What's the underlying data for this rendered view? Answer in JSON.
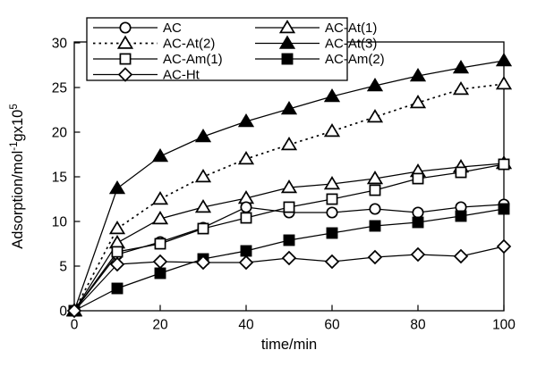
{
  "figure": {
    "background": "#ffffff",
    "ink_color": "#000000"
  },
  "chart_data": {
    "type": "line",
    "title": "",
    "xlabel": "time/min",
    "ylabel": "Adsorption/mol⁻¹gx10⁵",
    "ylabel_parts": [
      {
        "text": "Adsorption/mol"
      },
      {
        "text": "-1",
        "sup": true
      },
      {
        "text": "gx10"
      },
      {
        "text": "5",
        "sup": true
      }
    ],
    "xlim": [
      0,
      100
    ],
    "ylim": [
      0,
      30
    ],
    "xticks": [
      0,
      20,
      40,
      60,
      80,
      100
    ],
    "yticks": [
      0,
      5,
      10,
      15,
      20,
      25,
      30
    ],
    "grid": false,
    "legend_position": "top-left-inside",
    "x": [
      0,
      10,
      20,
      30,
      40,
      50,
      60,
      70,
      80,
      90,
      100
    ],
    "series": [
      {
        "name": "AC",
        "marker": "circle",
        "fill": "open",
        "line": "solid",
        "values": [
          0,
          6.3,
          7.7,
          9.3,
          11.6,
          11.0,
          11.0,
          11.4,
          11.0,
          11.6,
          11.9
        ]
      },
      {
        "name": "AC-At(1)",
        "marker": "triangle",
        "fill": "open",
        "line": "solid",
        "values": [
          0,
          7.6,
          10.3,
          11.6,
          12.6,
          13.8,
          14.2,
          14.8,
          15.6,
          16.1,
          16.5
        ]
      },
      {
        "name": "AC-At(2)",
        "marker": "triangle",
        "fill": "open",
        "line": "dotted",
        "values": [
          0,
          9.2,
          12.5,
          15.0,
          17.0,
          18.6,
          20.1,
          21.7,
          23.3,
          24.8,
          25.4
        ]
      },
      {
        "name": "AC-At(3)",
        "marker": "triangle",
        "fill": "filled",
        "line": "solid",
        "values": [
          0,
          13.7,
          17.3,
          19.5,
          21.2,
          22.6,
          24.0,
          25.2,
          26.3,
          27.2,
          28.0
        ]
      },
      {
        "name": "AC-Am(1)",
        "marker": "square",
        "fill": "open",
        "line": "solid",
        "values": [
          0,
          6.6,
          7.5,
          9.2,
          10.4,
          11.6,
          12.5,
          13.5,
          14.8,
          15.5,
          16.4
        ]
      },
      {
        "name": "AC-Am(2)",
        "marker": "square",
        "fill": "filled",
        "line": "solid",
        "values": [
          0,
          2.5,
          4.2,
          5.8,
          6.7,
          7.9,
          8.7,
          9.5,
          9.9,
          10.6,
          11.4
        ]
      },
      {
        "name": "AC-Ht",
        "marker": "diamond",
        "fill": "open",
        "line": "solid",
        "values": [
          0,
          5.2,
          5.5,
          5.4,
          5.4,
          5.9,
          5.5,
          6.0,
          6.3,
          6.1,
          7.2
        ]
      }
    ],
    "draw_order": [
      "AC-At(2)",
      "AC-At(3)",
      "AC-At(1)",
      "AC",
      "AC-Am(1)",
      "AC-Am(2)",
      "AC-Ht"
    ],
    "legend_columns": [
      [
        "AC",
        "AC-At(2)",
        "AC-Am(1)",
        "AC-Ht"
      ],
      [
        "AC-At(1)",
        "AC-At(3)",
        "AC-Am(2)"
      ]
    ]
  }
}
